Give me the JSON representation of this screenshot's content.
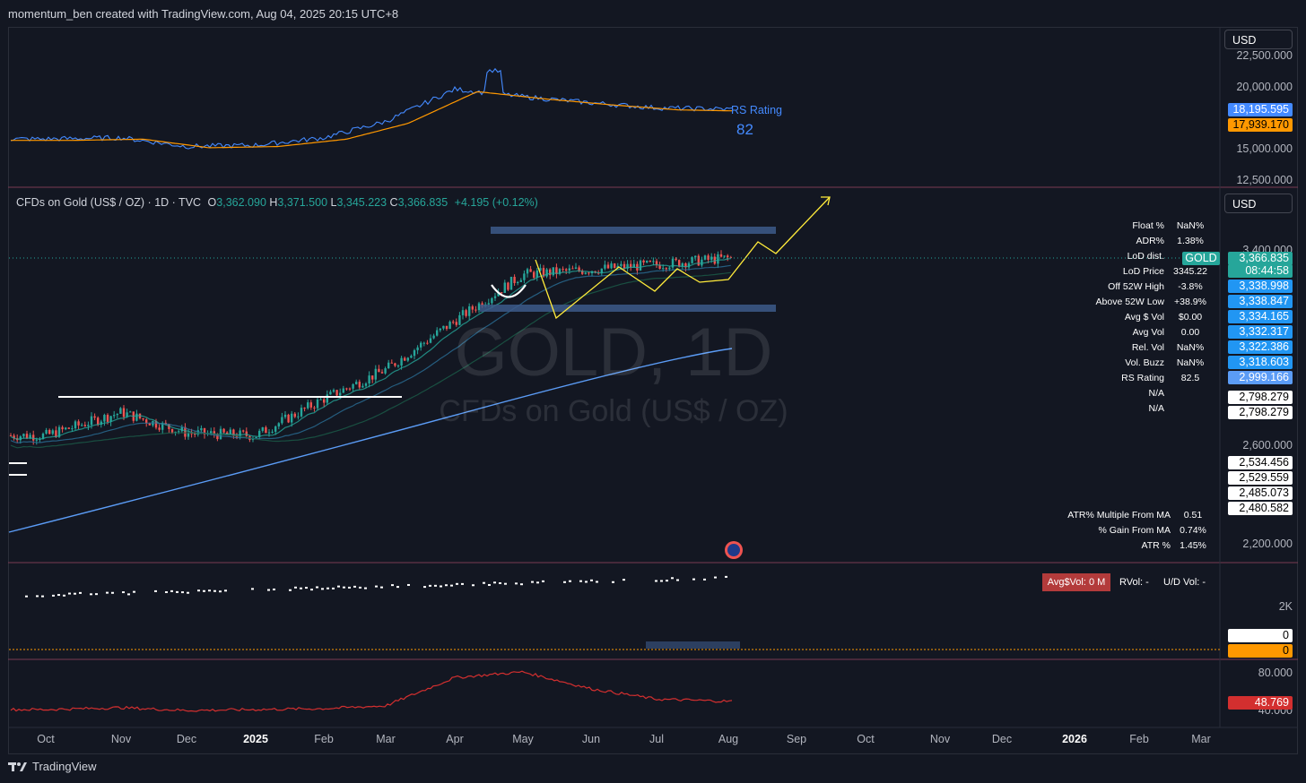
{
  "header": {
    "attribution": "momentum_ben created with TradingView.com, Aug 04, 2025 20:15 UTC+8"
  },
  "footer": {
    "brand": "TradingView"
  },
  "currency_buttons": [
    "USD",
    "USD"
  ],
  "legend": {
    "symbol": "CFDs on Gold (US$ / OZ) · 1D · TVC",
    "o_label": "O",
    "o": "3,362.090",
    "h_label": "H",
    "h": "3,371.500",
    "l_label": "L",
    "l": "3,345.223",
    "c_label": "C",
    "c": "3,366.835",
    "change": "+4.195 (+0.12%)"
  },
  "watermark": {
    "big": "GOLD, 1D",
    "small": "CFDs on Gold (US$ / OZ)"
  },
  "rs_pane": {
    "label": "RS Rating",
    "value": "82",
    "price_labels": [
      "22,500.000",
      "20,000.000",
      "15,000.000",
      "12,500.000"
    ],
    "badges": [
      {
        "text": "18,195.595",
        "bg": "#448aff",
        "fg": "#ffffff"
      },
      {
        "text": "17,939.170",
        "bg": "#ff9800",
        "fg": "#000000"
      }
    ]
  },
  "stats_table": [
    {
      "key": "Float %",
      "value": "NaN%"
    },
    {
      "key": "ADR%",
      "value": "1.38%"
    },
    {
      "key": "LoD dist.",
      "value": ""
    },
    {
      "key": "LoD Price",
      "value": "3345.22"
    },
    {
      "key": "Off 52W High",
      "value": "-3.8%"
    },
    {
      "key": "Above 52W Low",
      "value": "+38.9%"
    },
    {
      "key": "Avg $ Vol",
      "value": "$0.00"
    },
    {
      "key": "Avg Vol",
      "value": "0.00"
    },
    {
      "key": "Rel. Vol",
      "value": "NaN%"
    },
    {
      "key": "Vol. Buzz",
      "value": "NaN%"
    },
    {
      "key": "RS Rating",
      "value": "82.5"
    },
    {
      "key": "N/A",
      "value": ""
    },
    {
      "key": "N/A",
      "value": ""
    }
  ],
  "atr_table": [
    {
      "key": "ATR% Multiple From MA",
      "value": "0.51"
    },
    {
      "key": "% Gain From MA",
      "value": "0.74%"
    },
    {
      "key": "ATR %",
      "value": "1.45%"
    }
  ],
  "main_pane": {
    "price_labels": [
      "3,400.000",
      "2,600.000",
      "2,200.000"
    ],
    "gold_tag": "GOLD",
    "badges": [
      {
        "text": "3,366.835",
        "bg": "#26a69a",
        "fg": "#ffffff"
      },
      {
        "text": "08:44:58",
        "bg": "#26a69a",
        "fg": "#ffffff"
      },
      {
        "text": "3,338.998",
        "bg": "#2196f3",
        "fg": "#ffffff"
      },
      {
        "text": "3,338.847",
        "bg": "#2196f3",
        "fg": "#ffffff"
      },
      {
        "text": "3,334.165",
        "bg": "#2196f3",
        "fg": "#ffffff"
      },
      {
        "text": "3,332.317",
        "bg": "#2196f3",
        "fg": "#ffffff"
      },
      {
        "text": "3,322.386",
        "bg": "#2196f3",
        "fg": "#ffffff"
      },
      {
        "text": "3,318.603",
        "bg": "#2196f3",
        "fg": "#ffffff"
      },
      {
        "text": "2,999.166",
        "bg": "#5b9cf6",
        "fg": "#ffffff"
      },
      {
        "text": "2,798.279",
        "bg": "#ffffff",
        "fg": "#000000"
      },
      {
        "text": "2,798.279",
        "bg": "#ffffff",
        "fg": "#000000"
      },
      {
        "text": "2,534.456",
        "bg": "#ffffff",
        "fg": "#000000"
      },
      {
        "text": "2,529.559",
        "bg": "#ffffff",
        "fg": "#000000"
      },
      {
        "text": "2,485.073",
        "bg": "#ffffff",
        "fg": "#000000"
      },
      {
        "text": "2,480.582",
        "bg": "#ffffff",
        "fg": "#000000"
      }
    ]
  },
  "volume_pane": {
    "avg_vol_badge": "Avg$Vol: 0 M",
    "rvol": "RVol: -",
    "udvol": "U/D Vol: -",
    "price_label": "2K",
    "badges": [
      {
        "text": "0",
        "bg": "#ffffff",
        "fg": "#000000"
      },
      {
        "text": "0",
        "bg": "#ff9800",
        "fg": "#000000"
      }
    ]
  },
  "rsi_pane": {
    "price_labels": [
      "80.000",
      "40.000"
    ],
    "badge": {
      "text": "48.769",
      "bg": "#d32f2f",
      "fg": "#ffffff"
    }
  },
  "chart_data": {
    "type": "line",
    "title": "CFDs on Gold (US$ / OZ) · 1D · TVC",
    "x_tick_labels": [
      "Oct",
      "Nov",
      "Dec",
      "2025",
      "Feb",
      "Mar",
      "Apr",
      "May",
      "Jun",
      "Jul",
      "Aug",
      "Sep",
      "Oct",
      "Nov",
      "Dec",
      "2026",
      "Feb",
      "Mar"
    ],
    "price_series": {
      "name": "GOLD",
      "months": [
        "Oct",
        "Nov",
        "Dec",
        "2025",
        "Feb",
        "Mar",
        "Apr",
        "May",
        "Jun",
        "Jul",
        "Aug"
      ],
      "values": [
        2640,
        2735,
        2650,
        2640,
        2790,
        2910,
        3110,
        3300,
        3320,
        3340,
        3366.835
      ]
    },
    "rs_series": {
      "values": [
        15800,
        15900,
        15200,
        15300,
        15900,
        17200,
        19800,
        19200,
        18700,
        18300,
        18195.595
      ]
    },
    "rsi_series": {
      "values": [
        40,
        42,
        39,
        40,
        41,
        44,
        74,
        80,
        62,
        51,
        48.769
      ]
    },
    "legend": "top-left",
    "grid": false
  }
}
